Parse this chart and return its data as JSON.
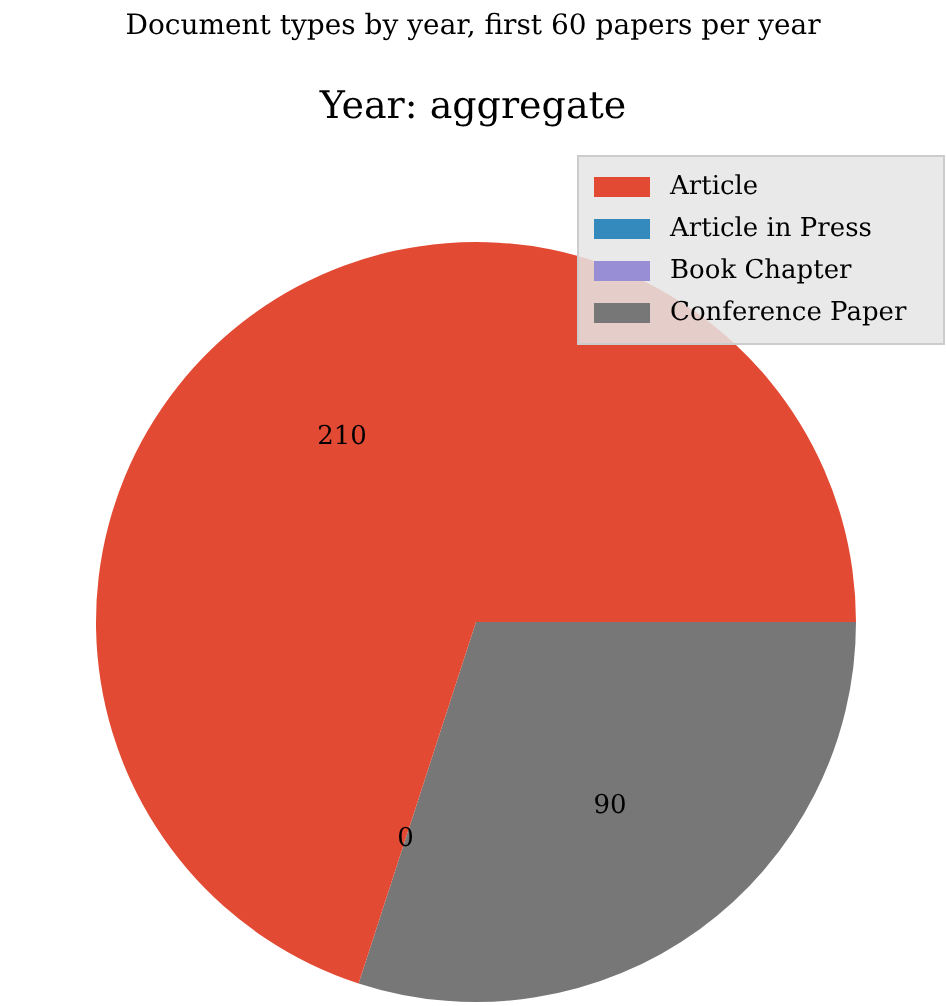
{
  "chart_data": {
    "type": "pie",
    "title": "Document types by year, first 60 papers per year",
    "subtitle": "Year: aggregate",
    "categories": [
      "Article",
      "Article in Press",
      "Book Chapter",
      "Conference Paper"
    ],
    "values": [
      210,
      0,
      0,
      90
    ],
    "colors": [
      "#e24a33",
      "#348abd",
      "#988ed5",
      "#777777"
    ],
    "value_labels": [
      "210",
      "0",
      null,
      "90"
    ],
    "legend": "top right"
  }
}
